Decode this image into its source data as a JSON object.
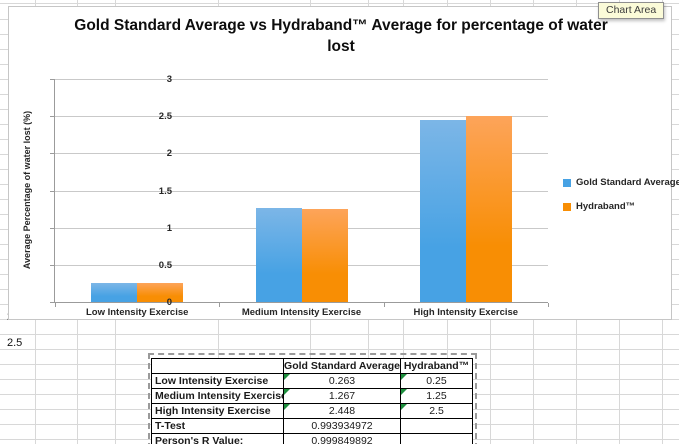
{
  "tooltip": "Chart Area",
  "sheet": {
    "cell_a_value": "2.5",
    "cell_a_partial": "2.5"
  },
  "chart_data": {
    "type": "bar",
    "title": "Gold Standard Average vs Hydraband™ Average for percentage of water lost",
    "ylabel": "Average Percentage of water lost (%)",
    "xlabel": "",
    "categories": [
      "Low Intensity Exercise",
      "Medium Intensity Exercise",
      "High Intensity Exercise"
    ],
    "series": [
      {
        "name": "Gold Standard Average",
        "values": [
          0.263,
          1.267,
          2.448
        ],
        "color": "#47a2e4",
        "color_light": "#7cb6e7"
      },
      {
        "name": "Hydraband™",
        "values": [
          0.25,
          1.25,
          2.5
        ],
        "color": "#f88e04",
        "color_light": "#fda45a"
      }
    ],
    "ylim": [
      0,
      3
    ],
    "ytick_step": 0.5,
    "grid": true,
    "legend_position": "right"
  },
  "table": {
    "headers": [
      "",
      "Gold Standard Average",
      "Hydraband™"
    ],
    "rows": [
      {
        "label": "Low Intensity Exercise",
        "values": [
          "0.263",
          "0.25"
        ],
        "flags": [
          true,
          true
        ]
      },
      {
        "label": "Medium Intensity Exercise",
        "values": [
          "1.267",
          "1.25"
        ],
        "flags": [
          true,
          true
        ]
      },
      {
        "label": "High Intensity Exercise",
        "values": [
          "2.448",
          "2.5"
        ],
        "flags": [
          true,
          true
        ]
      },
      {
        "label": "T-Test",
        "values": [
          "0.993934972",
          ""
        ],
        "flags": [
          false,
          false
        ]
      },
      {
        "label": "Person's R Value:",
        "values": [
          "0.999849892",
          ""
        ],
        "flags": [
          false,
          false
        ]
      }
    ]
  },
  "colors": {
    "gridline": "#c9c9c9",
    "axis": "#9b9b9b",
    "sheet_grid": "#d8d8d8",
    "tooltip_bg": "#fbfbd8",
    "table_border": "#000000",
    "flag_green": "#1e8f3e"
  }
}
